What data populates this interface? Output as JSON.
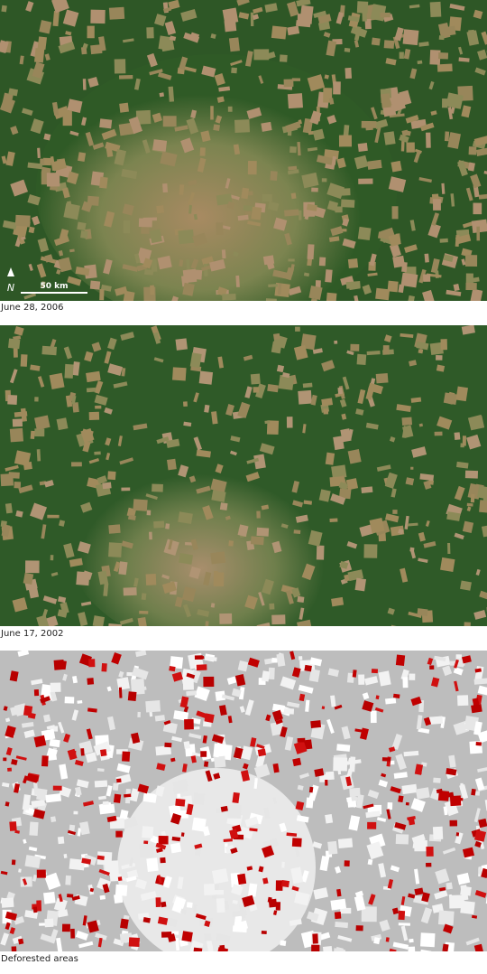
{
  "panels": [
    {
      "caption": "June 28, 2006"
    },
    {
      "caption": "June 17, 2002"
    },
    {
      "caption": "Deforested areas"
    }
  ],
  "scale_bar": {
    "label": "50 km"
  },
  "north_arrow": {
    "label": "N"
  }
}
